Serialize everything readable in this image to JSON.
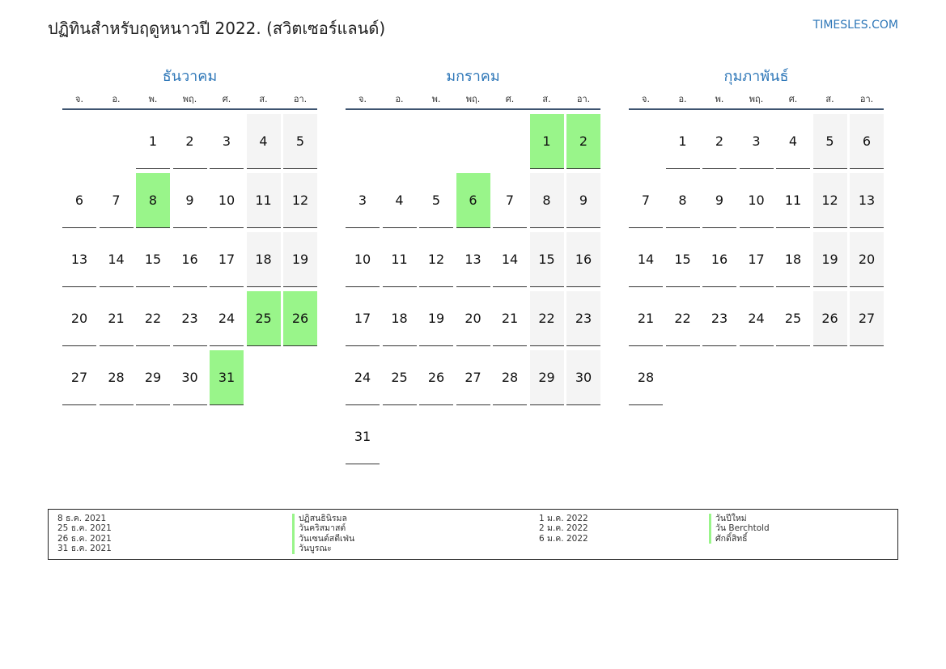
{
  "header": {
    "title": "ปฏิทินสำหรับฤดูหนาวปี 2022. (สวิตเซอร์แลนด์)",
    "brand": "TIMESLES.COM"
  },
  "weekdays": [
    "จ.",
    "อ.",
    "พ.",
    "พฤ.",
    "ศ.",
    "ส.",
    "อา."
  ],
  "colors": {
    "accent": "#2e77b8",
    "holiday": "#99f58a",
    "weekend": "#f4f4f4",
    "header_rule": "#3e5470"
  },
  "months": [
    {
      "name": "ธันวาคม",
      "offset": 2,
      "days": 31,
      "holidays": [
        8,
        25,
        26,
        31
      ]
    },
    {
      "name": "มกราคม",
      "offset": 5,
      "days": 31,
      "holidays": [
        1,
        2,
        6
      ]
    },
    {
      "name": "กุมภาพันธ์",
      "offset": 1,
      "days": 28,
      "holidays": []
    }
  ],
  "legend": {
    "left_dates": [
      "8 ธ.ค. 2021",
      "25 ธ.ค. 2021",
      "26 ธ.ค. 2021",
      "31 ธ.ค. 2021"
    ],
    "left_names": [
      "ปฏิสนธินิรมล",
      "วันคริสมาสต์",
      "วันเซนต์สตีเฟ่น",
      "วันบูรณะ"
    ],
    "right_dates": [
      "1 ม.ค. 2022",
      "2 ม.ค. 2022",
      "6 ม.ค. 2022"
    ],
    "right_names": [
      "วันปีใหม่",
      "วัน Berchtold",
      "ศักดิ์สิทธิ์"
    ]
  }
}
